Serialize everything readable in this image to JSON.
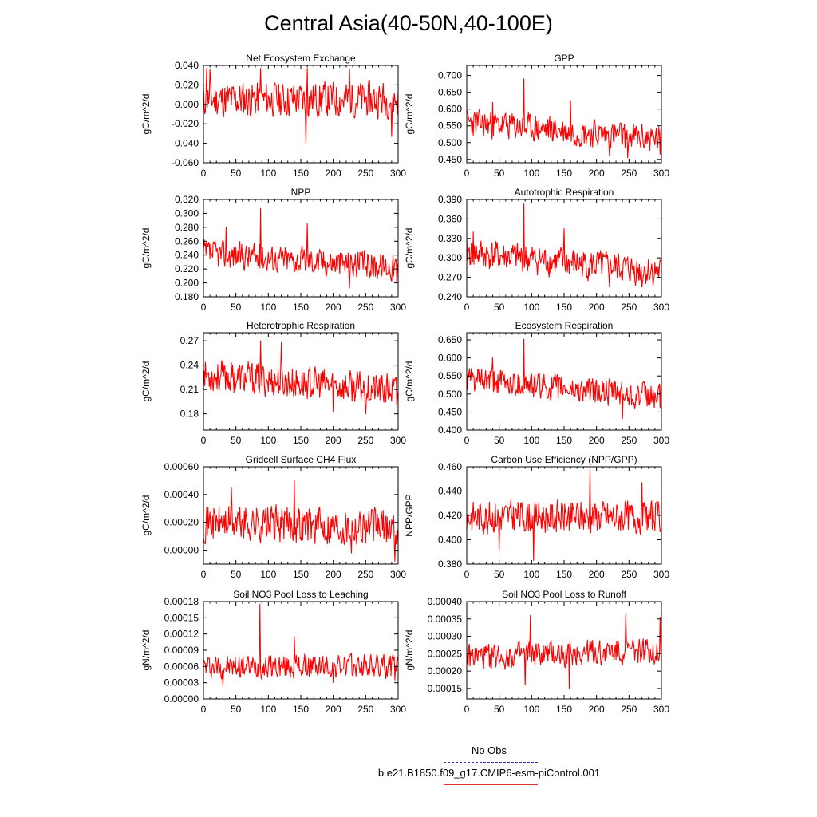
{
  "figure": {
    "title": "Central Asia(40-50N,40-100E)",
    "line_color": "#ff0000",
    "legend": {
      "obs_label": "No Obs",
      "obs_color": "#2a2ad6",
      "case_label": "b.e21.B1850.f09_g17.CMIP6-esm-piControl.001",
      "case_color": "#e03030"
    }
  },
  "chart_data": [
    {
      "type": "line",
      "title": "Net Ecosystem Exchange",
      "xlabel": "",
      "ylabel": "gC/m^2/d",
      "xlim": [
        0,
        300
      ],
      "ylim": [
        -0.06,
        0.04
      ],
      "xticks": [
        0,
        50,
        100,
        150,
        200,
        250,
        300
      ],
      "xtick_labels": [
        "0",
        "50",
        "100",
        "150",
        "200",
        "250",
        "300"
      ],
      "yticks": [
        -0.06,
        -0.04,
        -0.02,
        0,
        0.02,
        0.04
      ],
      "ytick_labels": [
        "-0.060",
        "-0.040",
        "-0.020",
        "0.000",
        "0.020",
        "0.040"
      ],
      "series": [
        {
          "name": "b.e21.B1850.f09_g17.CMIP6-esm-piControl.001",
          "mean": 0.005,
          "amp": 0.011,
          "trend": 0,
          "seed": 11,
          "spikes": [
            [
              5,
              0.037
            ],
            [
              10,
              0.036
            ],
            [
              88,
              0.037
            ],
            [
              158,
              -0.04
            ],
            [
              160,
              0.037
            ],
            [
              225,
              0.036
            ],
            [
              290,
              -0.033
            ]
          ]
        }
      ]
    },
    {
      "type": "line",
      "title": "GPP",
      "xlabel": "",
      "ylabel": "gC/m^2/d",
      "xlim": [
        0,
        300
      ],
      "ylim": [
        0.44,
        0.73
      ],
      "xticks": [
        0,
        50,
        100,
        150,
        200,
        250,
        300
      ],
      "xtick_labels": [
        "0",
        "50",
        "100",
        "150",
        "200",
        "250",
        "300"
      ],
      "yticks": [
        0.45,
        0.5,
        0.55,
        0.6,
        0.65,
        0.7
      ],
      "ytick_labels": [
        "0.450",
        "0.500",
        "0.550",
        "0.600",
        "0.650",
        "0.700"
      ],
      "series": [
        {
          "name": "b.e21.B1850.f09_g17.CMIP6-esm-piControl.001",
          "mean": 0.56,
          "amp": 0.025,
          "trend": -0.05,
          "seed": 23,
          "spikes": [
            [
              88,
              0.69
            ],
            [
              40,
              0.62
            ],
            [
              160,
              0.625
            ],
            [
              220,
              0.46
            ],
            [
              248,
              0.455
            ],
            [
              298,
              0.465
            ]
          ]
        }
      ]
    },
    {
      "type": "line",
      "title": "NPP",
      "xlabel": "",
      "ylabel": "gC/m^2/d",
      "xlim": [
        0,
        300
      ],
      "ylim": [
        0.18,
        0.32
      ],
      "xticks": [
        0,
        50,
        100,
        150,
        200,
        250,
        300
      ],
      "xtick_labels": [
        "0",
        "50",
        "100",
        "150",
        "200",
        "250",
        "300"
      ],
      "yticks": [
        0.18,
        0.2,
        0.22,
        0.24,
        0.26,
        0.28,
        0.3,
        0.32
      ],
      "ytick_labels": [
        "0.180",
        "0.200",
        "0.220",
        "0.240",
        "0.260",
        "0.280",
        "0.300",
        "0.320"
      ],
      "series": [
        {
          "name": "b.e21.B1850.f09_g17.CMIP6-esm-piControl.001",
          "mean": 0.243,
          "amp": 0.012,
          "trend": -0.02,
          "seed": 37,
          "spikes": [
            [
              88,
              0.307
            ],
            [
              35,
              0.28
            ],
            [
              160,
              0.285
            ],
            [
              225,
              0.193
            ],
            [
              298,
              0.2
            ]
          ]
        }
      ]
    },
    {
      "type": "line",
      "title": "Autotrophic Respiration",
      "xlabel": "",
      "ylabel": "gC/m^2/d",
      "xlim": [
        0,
        300
      ],
      "ylim": [
        0.24,
        0.39
      ],
      "xticks": [
        0,
        50,
        100,
        150,
        200,
        250,
        300
      ],
      "xtick_labels": [
        "0",
        "50",
        "100",
        "150",
        "200",
        "250",
        "300"
      ],
      "yticks": [
        0.24,
        0.27,
        0.3,
        0.33,
        0.36,
        0.39
      ],
      "ytick_labels": [
        "0.240",
        "0.270",
        "0.300",
        "0.330",
        "0.360",
        "0.390"
      ],
      "series": [
        {
          "name": "b.e21.B1850.f09_g17.CMIP6-esm-piControl.001",
          "mean": 0.308,
          "amp": 0.014,
          "trend": -0.03,
          "seed": 41,
          "spikes": [
            [
              88,
              0.383
            ],
            [
              10,
              0.34
            ],
            [
              150,
              0.345
            ],
            [
              220,
              0.255
            ],
            [
              270,
              0.255
            ]
          ]
        }
      ]
    },
    {
      "type": "line",
      "title": "Heterotrophic Respiration",
      "xlabel": "",
      "ylabel": "gC/m^2/d",
      "xlim": [
        0,
        300
      ],
      "ylim": [
        0.16,
        0.28
      ],
      "xticks": [
        0,
        50,
        100,
        150,
        200,
        250,
        300
      ],
      "xtick_labels": [
        "0",
        "50",
        "100",
        "150",
        "200",
        "250",
        "300"
      ],
      "yticks": [
        0.18,
        0.21,
        0.24,
        0.27
      ],
      "ytick_labels": [
        "0.18",
        "0.21",
        "0.24",
        "0.27"
      ],
      "series": [
        {
          "name": "b.e21.B1850.f09_g17.CMIP6-esm-piControl.001",
          "mean": 0.228,
          "amp": 0.012,
          "trend": -0.02,
          "seed": 53,
          "spikes": [
            [
              88,
              0.27
            ],
            [
              120,
              0.268
            ],
            [
              200,
              0.182
            ],
            [
              250,
              0.18
            ],
            [
              298,
              0.19
            ]
          ]
        }
      ]
    },
    {
      "type": "line",
      "title": "Ecosystem Respiration",
      "xlabel": "",
      "ylabel": "gC/m^2/d",
      "xlim": [
        0,
        300
      ],
      "ylim": [
        0.4,
        0.67
      ],
      "xticks": [
        0,
        50,
        100,
        150,
        200,
        250,
        300
      ],
      "xtick_labels": [
        "0",
        "50",
        "100",
        "150",
        "200",
        "250",
        "300"
      ],
      "yticks": [
        0.4,
        0.45,
        0.5,
        0.55,
        0.6,
        0.65
      ],
      "ytick_labels": [
        "0.400",
        "0.450",
        "0.500",
        "0.550",
        "0.600",
        "0.650"
      ],
      "series": [
        {
          "name": "b.e21.B1850.f09_g17.CMIP6-esm-piControl.001",
          "mean": 0.54,
          "amp": 0.022,
          "trend": -0.05,
          "seed": 61,
          "spikes": [
            [
              88,
              0.652
            ],
            [
              40,
              0.6
            ],
            [
              240,
              0.432
            ],
            [
              298,
              0.46
            ]
          ]
        }
      ]
    },
    {
      "type": "line",
      "title": "Gridcell Surface CH4 Flux",
      "xlabel": "",
      "ylabel": "gC/m^2/d",
      "xlim": [
        0,
        300
      ],
      "ylim": [
        -0.0001,
        0.0006
      ],
      "xticks": [
        0,
        50,
        100,
        150,
        200,
        250,
        300
      ],
      "xtick_labels": [
        "0",
        "50",
        "100",
        "150",
        "200",
        "250",
        "300"
      ],
      "yticks": [
        0,
        0.0002,
        0.0004,
        0.0006
      ],
      "ytick_labels": [
        "0.00000",
        "0.00020",
        "0.00040",
        "0.00060"
      ],
      "series": [
        {
          "name": "b.e21.B1850.f09_g17.CMIP6-esm-piControl.001",
          "mean": 0.0002,
          "amp": 8e-05,
          "trend": -3e-05,
          "seed": 71,
          "spikes": [
            [
              140,
              0.0005
            ],
            [
              43,
              0.00045
            ],
            [
              228,
              -2e-05
            ],
            [
              295,
              -8e-05
            ]
          ]
        }
      ]
    },
    {
      "type": "line",
      "title": "Carbon Use Efficiency (NPP/GPP)",
      "xlabel": "",
      "ylabel": "NPP/GPP",
      "xlim": [
        0,
        300
      ],
      "ylim": [
        0.38,
        0.46
      ],
      "xticks": [
        0,
        50,
        100,
        150,
        200,
        250,
        300
      ],
      "xtick_labels": [
        "0",
        "50",
        "100",
        "150",
        "200",
        "250",
        "300"
      ],
      "yticks": [
        0.38,
        0.4,
        0.42,
        0.44,
        0.46
      ],
      "ytick_labels": [
        "0.380",
        "0.400",
        "0.420",
        "0.440",
        "0.460"
      ],
      "series": [
        {
          "name": "b.e21.B1850.f09_g17.CMIP6-esm-piControl.001",
          "mean": 0.419,
          "amp": 0.008,
          "trend": 0,
          "seed": 83,
          "spikes": [
            [
              190,
              0.458
            ],
            [
              270,
              0.447
            ],
            [
              103,
              0.383
            ],
            [
              50,
              0.392
            ]
          ]
        }
      ]
    },
    {
      "type": "line",
      "title": "Soil NO3 Pool Loss to Leaching",
      "xlabel": "",
      "ylabel": "gN/m^2/d",
      "xlim": [
        0,
        300
      ],
      "ylim": [
        0,
        0.00018
      ],
      "xticks": [
        0,
        50,
        100,
        150,
        200,
        250,
        300
      ],
      "xtick_labels": [
        "0",
        "50",
        "100",
        "150",
        "200",
        "250",
        "300"
      ],
      "yticks": [
        0,
        3e-05,
        6e-05,
        9e-05,
        0.00012,
        0.00015,
        0.00018
      ],
      "ytick_labels": [
        "0.00000",
        "0.00003",
        "0.00006",
        "0.00009",
        "0.00012",
        "0.00015",
        "0.00018"
      ],
      "series": [
        {
          "name": "b.e21.B1850.f09_g17.CMIP6-esm-piControl.001",
          "mean": 6e-05,
          "amp": 1.3e-05,
          "trend": 0,
          "seed": 97,
          "spikes": [
            [
              87,
              0.000175
            ],
            [
              140,
              0.000115
            ],
            [
              30,
              2.5e-05
            ],
            [
              200,
              3e-05
            ],
            [
              295,
              3.5e-05
            ]
          ]
        }
      ]
    },
    {
      "type": "line",
      "title": "Soil NO3 Pool Loss to Runoff",
      "xlabel": "",
      "ylabel": "gN/m^2/d",
      "xlim": [
        0,
        300
      ],
      "ylim": [
        0.00012,
        0.0004
      ],
      "xticks": [
        0,
        50,
        100,
        150,
        200,
        250,
        300
      ],
      "xtick_labels": [
        "0",
        "50",
        "100",
        "150",
        "200",
        "250",
        "300"
      ],
      "yticks": [
        0.00015,
        0.0002,
        0.00025,
        0.0003,
        0.00035,
        0.0004
      ],
      "ytick_labels": [
        "0.00015",
        "0.00020",
        "0.00025",
        "0.00030",
        "0.00035",
        "0.00040"
      ],
      "series": [
        {
          "name": "b.e21.B1850.f09_g17.CMIP6-esm-piControl.001",
          "mean": 0.00024,
          "amp": 2.2e-05,
          "trend": 2e-05,
          "seed": 109,
          "spikes": [
            [
              98,
              0.00036
            ],
            [
              245,
              0.000365
            ],
            [
              298,
              0.000355
            ],
            [
              158,
              0.00015
            ],
            [
              90,
              0.00016
            ]
          ]
        }
      ]
    }
  ]
}
